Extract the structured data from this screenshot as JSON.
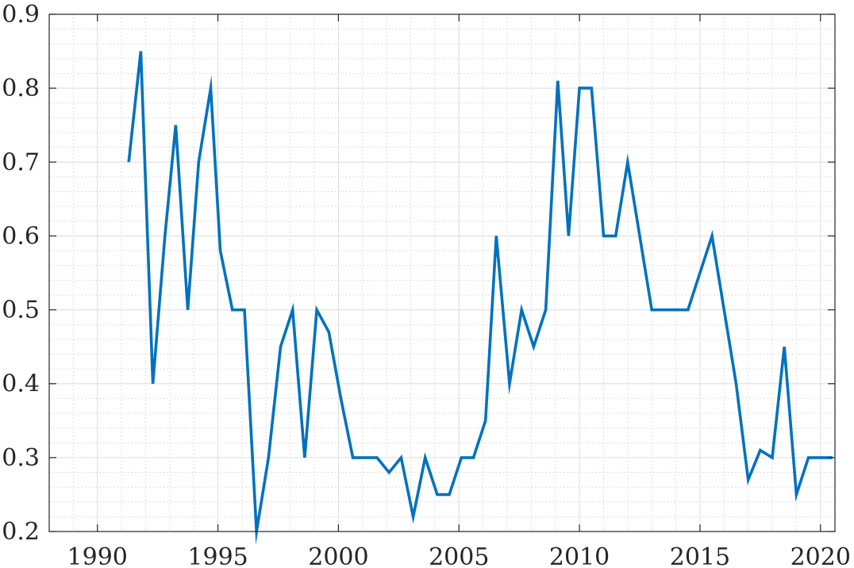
{
  "chart_data": {
    "type": "line",
    "title": "",
    "xlabel": "",
    "ylabel": "",
    "xlim": [
      1988,
      2020.6
    ],
    "ylim": [
      0.2,
      0.9
    ],
    "grid": {
      "major": true,
      "minor": true
    },
    "x_ticks": [
      1990,
      1995,
      2000,
      2005,
      2010,
      2015,
      2020
    ],
    "x_tick_labels": [
      "1990",
      "1995",
      "2000",
      "2005",
      "2010",
      "2015",
      "2020"
    ],
    "y_ticks": [
      0.2,
      0.3,
      0.4,
      0.5,
      0.6,
      0.7,
      0.8,
      0.9
    ],
    "y_tick_labels": [
      "0.2",
      "0.3",
      "0.4",
      "0.5",
      "0.6",
      "0.7",
      "0.8",
      "0.9"
    ],
    "series": [
      {
        "color": "#0072BD",
        "x": [
          1991.3,
          1991.8,
          1992.3,
          1992.8,
          1993.25,
          1993.75,
          1994.2,
          1994.7,
          1995.1,
          1995.6,
          1996.1,
          1996.6,
          1997.1,
          1997.6,
          1998.1,
          1998.6,
          1999.1,
          1999.6,
          2000.1,
          2000.6,
          2001.1,
          2001.6,
          2002.1,
          2002.6,
          2003.1,
          2003.6,
          2004.1,
          2004.6,
          2005.1,
          2005.6,
          2006.1,
          2006.55,
          2007.1,
          2007.6,
          2008.1,
          2008.6,
          2009.1,
          2009.55,
          2010.0,
          2010.5,
          2011.0,
          2011.5,
          2012.0,
          2012.5,
          2013.0,
          2013.5,
          2014.0,
          2014.5,
          2015.0,
          2015.5,
          2016.0,
          2016.5,
          2017.0,
          2017.5,
          2018.0,
          2018.5,
          2019.0,
          2019.5,
          2020.0,
          2020.5
        ],
        "y": [
          0.7,
          0.85,
          0.4,
          0.6,
          0.75,
          0.5,
          0.7,
          0.8,
          0.58,
          0.5,
          0.5,
          0.2,
          0.3,
          0.45,
          0.5,
          0.3,
          0.5,
          0.47,
          0.38,
          0.3,
          0.3,
          0.3,
          0.28,
          0.3,
          0.22,
          0.3,
          0.25,
          0.25,
          0.3,
          0.3,
          0.35,
          0.6,
          0.4,
          0.5,
          0.45,
          0.5,
          0.81,
          0.6,
          0.8,
          0.8,
          0.6,
          0.6,
          0.7,
          0.6,
          0.5,
          0.5,
          0.5,
          0.5,
          0.55,
          0.6,
          0.5,
          0.4,
          0.27,
          0.31,
          0.3,
          0.45,
          0.25,
          0.3,
          0.3,
          0.3
        ]
      }
    ]
  }
}
